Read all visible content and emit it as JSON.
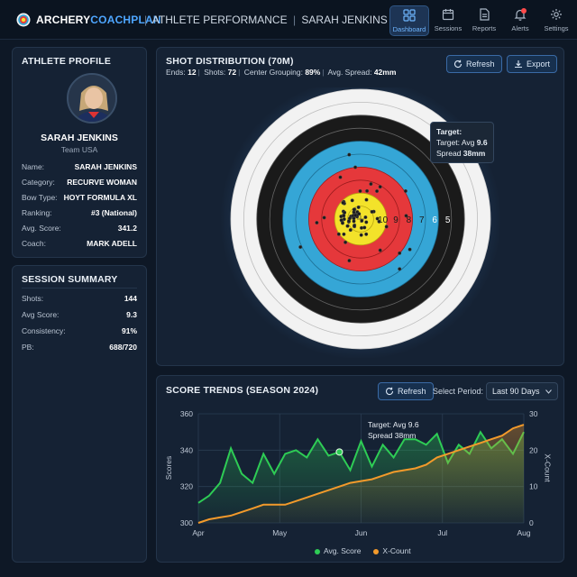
{
  "header": {
    "brand_part1": "ARCHERY",
    "brand_part2": "COACHPLAN",
    "crumb1": "ATHLETE PERFORMANCE",
    "crumb2": "SARAH JENKINS",
    "separator": "|",
    "nav": [
      {
        "label": "Dashboard",
        "icon": "dashboard-icon",
        "active": true
      },
      {
        "label": "Sessions",
        "icon": "calendar-icon"
      },
      {
        "label": "Reports",
        "icon": "document-icon"
      },
      {
        "label": "Alerts",
        "icon": "bell-icon"
      },
      {
        "label": "Settings",
        "icon": "gear-icon"
      }
    ]
  },
  "profile": {
    "title": "ATHLETE PROFILE",
    "name": "SARAH JENKINS",
    "team": "Team USA",
    "fields": [
      {
        "label": "Name:",
        "value": "SARAH JENKINS"
      },
      {
        "label": "Category:",
        "value": "RECURVE WOMAN"
      },
      {
        "label": "Bow Type:",
        "value": "HOYT FORMULA XL"
      },
      {
        "label": "Ranking:",
        "value": "#3 (National)"
      },
      {
        "label": "Avg. Score:",
        "value": "341.2"
      },
      {
        "label": "Coach:",
        "value": "MARK ADELL"
      }
    ]
  },
  "session": {
    "title": "SESSION SUMMARY",
    "fields": [
      {
        "label": "Shots:",
        "value": "144"
      },
      {
        "label": "Avg Score:",
        "value": "9.3"
      },
      {
        "label": "Consistency:",
        "value": "91%"
      },
      {
        "label": "PB:",
        "value": "688/720"
      }
    ]
  },
  "shots": {
    "title": "SHOT DISTRIBUTION (70M)",
    "ends_label": "Ends:",
    "ends": "12",
    "shots_label": "Shots:",
    "shots": "72",
    "grouping_label": "Center Grouping:",
    "grouping": "89%",
    "spread_label": "Avg. Spread:",
    "spread": "42mm",
    "refresh_label": "Refresh",
    "export_label": "Export",
    "ring_labels": [
      "10",
      "9",
      "8",
      "7",
      "6",
      "5"
    ],
    "tooltip": {
      "title": "Target:",
      "line1_label": "Target: Avg",
      "line1_value": "9.6",
      "line2_label": "Spread",
      "line2_value": "38mm"
    },
    "colors": {
      "white": "#f2f2f2",
      "black": "#1a1a1a",
      "blue": "#35a6d6",
      "red": "#e5383b",
      "gold": "#f3e22a"
    }
  },
  "trends": {
    "title": "SCORE TRENDS (SEASON 2024)",
    "refresh_label": "Refresh",
    "period_label": "Select Period:",
    "period_value": "Last 90 Days",
    "tooltip_line1": "Target: Avg 9.6",
    "tooltip_line2": "Spread 38mm"
  },
  "chart_data": {
    "type": "line",
    "title": "SCORE TRENDS (SEASON 2024)",
    "x_ticks": [
      "Apr",
      "May",
      "Jun",
      "Jul",
      "Aug"
    ],
    "y_left": {
      "label": "Scores",
      "range": [
        300,
        360
      ],
      "ticks": [
        "300",
        "320",
        "340",
        "360"
      ]
    },
    "y_right": {
      "label": "X-Count",
      "range": [
        0,
        30
      ],
      "ticks": [
        "0",
        "10",
        "20",
        "30"
      ]
    },
    "grid": true,
    "legend_position": "bottom",
    "series": [
      {
        "name": "Avg. Score",
        "axis": "left",
        "color": "#2ecc55",
        "values": [
          311,
          315,
          322,
          341,
          327,
          322,
          338,
          327,
          338,
          340,
          336,
          346,
          337,
          339,
          329,
          345,
          331,
          343,
          336,
          346,
          346,
          343,
          349,
          333,
          343,
          338,
          350,
          341,
          346,
          338,
          350
        ]
      },
      {
        "name": "X-Count",
        "axis": "right",
        "color": "#f39a2b",
        "values": [
          0,
          1,
          1.5,
          2,
          3,
          4,
          5,
          5,
          5,
          6,
          7,
          8,
          9,
          10,
          11,
          11.5,
          12,
          13,
          14,
          14.5,
          15,
          16,
          18,
          19,
          20,
          21,
          22,
          23,
          24,
          26,
          27
        ]
      }
    ]
  }
}
